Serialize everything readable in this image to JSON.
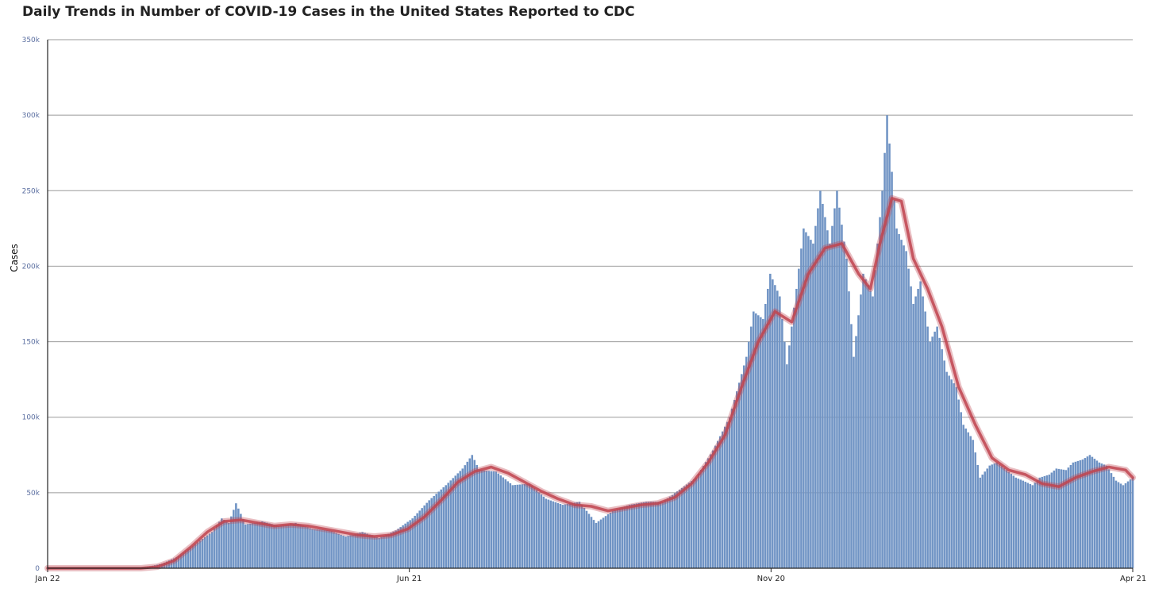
{
  "chart_data": {
    "type": "bar",
    "title": "Daily Trends in Number of COVID-19 Cases in the United States Reported to CDC",
    "xlabel": "",
    "ylabel": "Cases",
    "ylim": [
      0,
      350000
    ],
    "y_ticks": [
      "0",
      "50k",
      "100k",
      "150k",
      "200k",
      "250k",
      "300k",
      "350k"
    ],
    "x_ticks": [
      "Jan 22",
      "Jun 21",
      "Nov 20",
      "Apr 21"
    ],
    "x_range": [
      "2020-01-22",
      "2021-04-21"
    ],
    "grid": "horizontal",
    "series": [
      {
        "kind": "bar",
        "color": "#6f93c4",
        "points": [
          [
            "2020-03-01",
            0
          ],
          [
            "2020-03-10",
            3000
          ],
          [
            "2020-03-17",
            8000
          ],
          [
            "2020-03-24",
            16000
          ],
          [
            "2020-03-31",
            24000
          ],
          [
            "2020-04-04",
            33000
          ],
          [
            "2020-04-07",
            30000
          ],
          [
            "2020-04-10",
            43000
          ],
          [
            "2020-04-14",
            29000
          ],
          [
            "2020-04-21",
            31000
          ],
          [
            "2020-04-28",
            28000
          ],
          [
            "2020-05-05",
            30000
          ],
          [
            "2020-05-12",
            26000
          ],
          [
            "2020-05-19",
            25000
          ],
          [
            "2020-05-26",
            21000
          ],
          [
            "2020-06-02",
            24000
          ],
          [
            "2020-06-09",
            20000
          ],
          [
            "2020-06-16",
            25000
          ],
          [
            "2020-06-23",
            33000
          ],
          [
            "2020-06-30",
            45000
          ],
          [
            "2020-07-07",
            55000
          ],
          [
            "2020-07-14",
            66000
          ],
          [
            "2020-07-18",
            75000
          ],
          [
            "2020-07-21",
            65000
          ],
          [
            "2020-07-28",
            64000
          ],
          [
            "2020-08-04",
            55000
          ],
          [
            "2020-08-11",
            56000
          ],
          [
            "2020-08-18",
            46000
          ],
          [
            "2020-08-25",
            42000
          ],
          [
            "2020-09-01",
            44000
          ],
          [
            "2020-09-08",
            30000
          ],
          [
            "2020-09-15",
            38000
          ],
          [
            "2020-09-22",
            42000
          ],
          [
            "2020-09-29",
            44000
          ],
          [
            "2020-10-06",
            44000
          ],
          [
            "2020-10-13",
            52000
          ],
          [
            "2020-10-20",
            60000
          ],
          [
            "2020-10-27",
            78000
          ],
          [
            "2020-11-03",
            100000
          ],
          [
            "2020-11-10",
            140000
          ],
          [
            "2020-11-13",
            170000
          ],
          [
            "2020-11-17",
            165000
          ],
          [
            "2020-11-20",
            195000
          ],
          [
            "2020-11-24",
            180000
          ],
          [
            "2020-11-27",
            135000
          ],
          [
            "2020-12-01",
            185000
          ],
          [
            "2020-12-04",
            225000
          ],
          [
            "2020-12-08",
            215000
          ],
          [
            "2020-12-11",
            250000
          ],
          [
            "2020-12-15",
            215000
          ],
          [
            "2020-12-18",
            250000
          ],
          [
            "2020-12-22",
            205000
          ],
          [
            "2020-12-25",
            140000
          ],
          [
            "2020-12-29",
            195000
          ],
          [
            "2021-01-02",
            180000
          ],
          [
            "2021-01-06",
            250000
          ],
          [
            "2021-01-08",
            300000
          ],
          [
            "2021-01-12",
            225000
          ],
          [
            "2021-01-16",
            210000
          ],
          [
            "2021-01-19",
            175000
          ],
          [
            "2021-01-22",
            190000
          ],
          [
            "2021-01-26",
            150000
          ],
          [
            "2021-01-29",
            160000
          ],
          [
            "2021-02-02",
            130000
          ],
          [
            "2021-02-06",
            120000
          ],
          [
            "2021-02-09",
            95000
          ],
          [
            "2021-02-13",
            85000
          ],
          [
            "2021-02-16",
            60000
          ],
          [
            "2021-02-20",
            68000
          ],
          [
            "2021-02-23",
            70000
          ],
          [
            "2021-02-27",
            65000
          ],
          [
            "2021-03-03",
            60000
          ],
          [
            "2021-03-06",
            58000
          ],
          [
            "2021-03-10",
            55000
          ],
          [
            "2021-03-13",
            60000
          ],
          [
            "2021-03-17",
            62000
          ],
          [
            "2021-03-20",
            66000
          ],
          [
            "2021-03-24",
            65000
          ],
          [
            "2021-03-27",
            70000
          ],
          [
            "2021-03-31",
            72000
          ],
          [
            "2021-04-03",
            75000
          ],
          [
            "2021-04-07",
            70000
          ],
          [
            "2021-04-10",
            68000
          ],
          [
            "2021-04-14",
            58000
          ],
          [
            "2021-04-17",
            55000
          ],
          [
            "2021-04-21",
            60000
          ]
        ]
      },
      {
        "kind": "line",
        "color": "#c0444f",
        "points": [
          [
            "2020-01-22",
            0
          ],
          [
            "2020-03-01",
            0
          ],
          [
            "2020-03-08",
            1000
          ],
          [
            "2020-03-15",
            5000
          ],
          [
            "2020-03-22",
            14000
          ],
          [
            "2020-03-29",
            24000
          ],
          [
            "2020-04-05",
            31000
          ],
          [
            "2020-04-12",
            32000
          ],
          [
            "2020-04-19",
            30000
          ],
          [
            "2020-04-26",
            28000
          ],
          [
            "2020-05-03",
            29000
          ],
          [
            "2020-05-10",
            28000
          ],
          [
            "2020-05-17",
            26000
          ],
          [
            "2020-05-24",
            24000
          ],
          [
            "2020-05-31",
            22000
          ],
          [
            "2020-06-07",
            21000
          ],
          [
            "2020-06-14",
            22000
          ],
          [
            "2020-06-21",
            26000
          ],
          [
            "2020-06-28",
            34000
          ],
          [
            "2020-07-05",
            45000
          ],
          [
            "2020-07-12",
            57000
          ],
          [
            "2020-07-19",
            64000
          ],
          [
            "2020-07-26",
            67000
          ],
          [
            "2020-08-02",
            63000
          ],
          [
            "2020-08-09",
            57000
          ],
          [
            "2020-08-16",
            51000
          ],
          [
            "2020-08-23",
            46000
          ],
          [
            "2020-08-30",
            42000
          ],
          [
            "2020-09-06",
            41000
          ],
          [
            "2020-09-13",
            38000
          ],
          [
            "2020-09-20",
            40000
          ],
          [
            "2020-09-27",
            42000
          ],
          [
            "2020-10-04",
            43000
          ],
          [
            "2020-10-11",
            47000
          ],
          [
            "2020-10-18",
            56000
          ],
          [
            "2020-10-25",
            70000
          ],
          [
            "2020-11-01",
            88000
          ],
          [
            "2020-11-08",
            120000
          ],
          [
            "2020-11-15",
            150000
          ],
          [
            "2020-11-22",
            170000
          ],
          [
            "2020-11-29",
            163000
          ],
          [
            "2020-12-06",
            195000
          ],
          [
            "2020-12-13",
            212000
          ],
          [
            "2020-12-20",
            215000
          ],
          [
            "2020-12-27",
            195000
          ],
          [
            "2021-01-01",
            185000
          ],
          [
            "2021-01-05",
            215000
          ],
          [
            "2021-01-10",
            245000
          ],
          [
            "2021-01-14",
            243000
          ],
          [
            "2021-01-19",
            205000
          ],
          [
            "2021-01-25",
            185000
          ],
          [
            "2021-01-31",
            160000
          ],
          [
            "2021-02-07",
            120000
          ],
          [
            "2021-02-14",
            95000
          ],
          [
            "2021-02-21",
            73000
          ],
          [
            "2021-02-28",
            65000
          ],
          [
            "2021-03-07",
            62000
          ],
          [
            "2021-03-14",
            56000
          ],
          [
            "2021-03-21",
            54000
          ],
          [
            "2021-03-28",
            60000
          ],
          [
            "2021-04-04",
            64000
          ],
          [
            "2021-04-11",
            67000
          ],
          [
            "2021-04-18",
            65000
          ],
          [
            "2021-04-21",
            60000
          ]
        ]
      }
    ]
  }
}
